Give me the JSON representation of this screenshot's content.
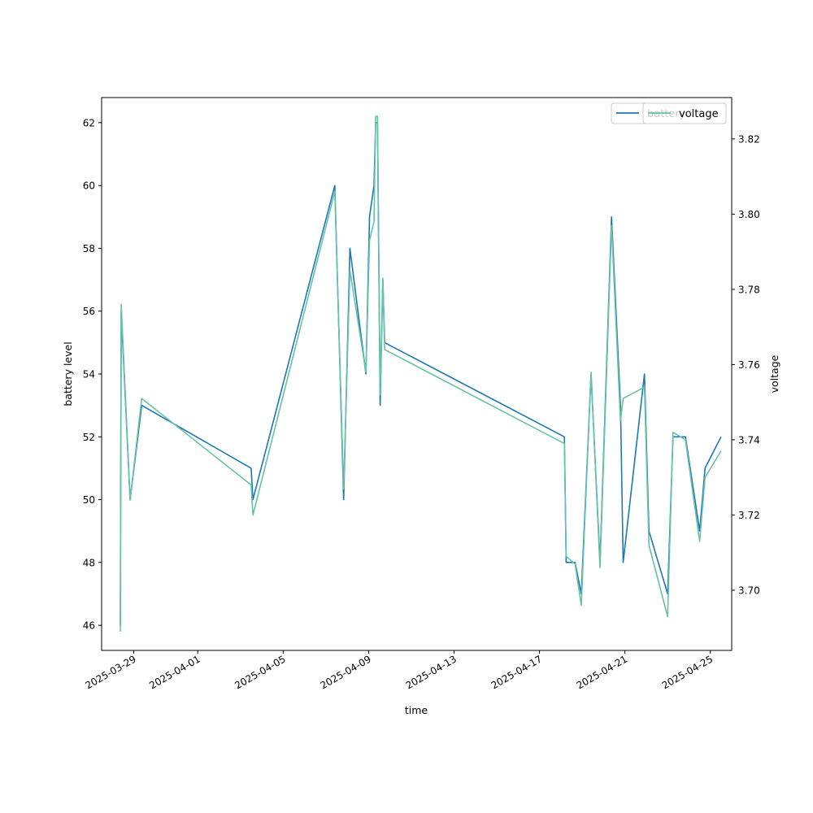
{
  "chart_data": {
    "type": "line",
    "title": "",
    "xlabel": "time",
    "ylabel": "battery level",
    "y2label": "voltage",
    "xlim": [
      "2025-03-27 12:00",
      "2025-04-26 00:00"
    ],
    "ylim": [
      45.2,
      62.8
    ],
    "y2lim": [
      3.684,
      3.831
    ],
    "x_ticks": [
      "2025-03-29",
      "2025-04-01",
      "2025-04-05",
      "2025-04-09",
      "2025-04-13",
      "2025-04-17",
      "2025-04-21",
      "2025-04-25"
    ],
    "y_ticks": [
      "46",
      "48",
      "50",
      "52",
      "54",
      "56",
      "58",
      "60",
      "62"
    ],
    "y2_ticks": [
      "3.70",
      "3.72",
      "3.74",
      "3.76",
      "3.78",
      "3.80",
      "3.82"
    ],
    "grid": false,
    "legend_position": "top-right",
    "colors": {
      "battery": "#1f77b4",
      "voltage": "#66c2a5"
    },
    "series": [
      {
        "name": "battery",
        "axis": "left",
        "points": [
          [
            "2025-03-28 09:00",
            46
          ],
          [
            "2025-03-28 10:00",
            56
          ],
          [
            "2025-03-28 20:00",
            50
          ],
          [
            "2025-03-29 09:00",
            53
          ],
          [
            "2025-04-03 12:00",
            51
          ],
          [
            "2025-04-03 14:00",
            50
          ],
          [
            "2025-04-07 10:00",
            60
          ],
          [
            "2025-04-07 20:00",
            50
          ],
          [
            "2025-04-08 03:00",
            58
          ],
          [
            "2025-04-08 21:00",
            54
          ],
          [
            "2025-04-09 01:00",
            59
          ],
          [
            "2025-04-09 06:00",
            60
          ],
          [
            "2025-04-09 08:00",
            62
          ],
          [
            "2025-04-09 10:00",
            62
          ],
          [
            "2025-04-09 13:00",
            53
          ],
          [
            "2025-04-09 16:00",
            57
          ],
          [
            "2025-04-09 18:00",
            55
          ],
          [
            "2025-04-18 04:00",
            52
          ],
          [
            "2025-04-18 06:00",
            48
          ],
          [
            "2025-04-18 16:00",
            48
          ],
          [
            "2025-04-18 23:00",
            47
          ],
          [
            "2025-04-19 10:00",
            54
          ],
          [
            "2025-04-19 20:00",
            48
          ],
          [
            "2025-04-20 09:00",
            59
          ],
          [
            "2025-04-20 19:00",
            53
          ],
          [
            "2025-04-20 22:00",
            48
          ],
          [
            "2025-04-21 22:00",
            54
          ],
          [
            "2025-04-22 03:00",
            49
          ],
          [
            "2025-04-23 00:00",
            47
          ],
          [
            "2025-04-23 06:00",
            52
          ],
          [
            "2025-04-23 20:00",
            52
          ],
          [
            "2025-04-24 12:00",
            49
          ],
          [
            "2025-04-24 18:00",
            51
          ],
          [
            "2025-04-25 12:00",
            52
          ]
        ]
      },
      {
        "name": "voltage",
        "axis": "right",
        "points": [
          [
            "2025-03-28 09:00",
            3.689
          ],
          [
            "2025-03-28 10:00",
            3.776
          ],
          [
            "2025-03-28 20:00",
            3.724
          ],
          [
            "2025-03-29 09:00",
            3.751
          ],
          [
            "2025-04-03 12:00",
            3.728
          ],
          [
            "2025-04-03 14:00",
            3.72
          ],
          [
            "2025-04-07 10:00",
            3.806
          ],
          [
            "2025-04-07 20:00",
            3.727
          ],
          [
            "2025-04-08 03:00",
            3.785
          ],
          [
            "2025-04-08 21:00",
            3.758
          ],
          [
            "2025-04-09 01:00",
            3.793
          ],
          [
            "2025-04-09 06:00",
            3.798
          ],
          [
            "2025-04-09 08:00",
            3.826
          ],
          [
            "2025-04-09 10:00",
            3.826
          ],
          [
            "2025-04-09 13:00",
            3.752
          ],
          [
            "2025-04-09 16:00",
            3.783
          ],
          [
            "2025-04-09 18:00",
            3.764
          ],
          [
            "2025-04-18 04:00",
            3.739
          ],
          [
            "2025-04-18 06:00",
            3.709
          ],
          [
            "2025-04-18 16:00",
            3.707
          ],
          [
            "2025-04-18 23:00",
            3.696
          ],
          [
            "2025-04-19 10:00",
            3.758
          ],
          [
            "2025-04-19 20:00",
            3.706
          ],
          [
            "2025-04-20 09:00",
            3.797
          ],
          [
            "2025-04-20 19:00",
            3.745
          ],
          [
            "2025-04-20 22:00",
            3.751
          ],
          [
            "2025-04-21 22:00",
            3.754
          ],
          [
            "2025-04-22 03:00",
            3.712
          ],
          [
            "2025-04-23 00:00",
            3.693
          ],
          [
            "2025-04-23 06:00",
            3.742
          ],
          [
            "2025-04-23 20:00",
            3.74
          ],
          [
            "2025-04-24 12:00",
            3.713
          ],
          [
            "2025-04-24 18:00",
            3.73
          ],
          [
            "2025-04-25 12:00",
            3.737
          ]
        ]
      }
    ],
    "legends": [
      {
        "entries": [
          "battery"
        ],
        "position": "top-right"
      },
      {
        "entries": [
          "voltage"
        ],
        "position": "top-right"
      }
    ]
  }
}
